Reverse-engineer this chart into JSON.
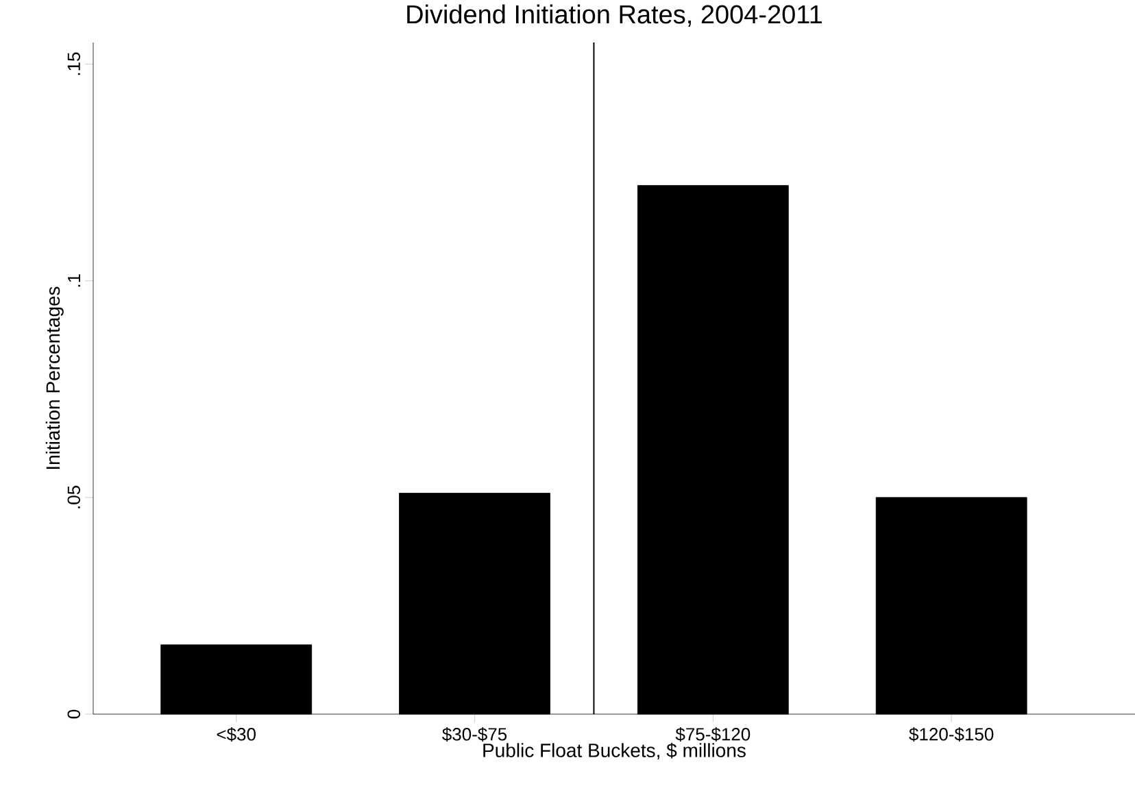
{
  "chart_data": {
    "type": "bar",
    "title": "Dividend Initiation Rates, 2004-2011",
    "xlabel": "Public Float Buckets, $ millions",
    "ylabel": "Initiation Percentages",
    "categories": [
      "<$30",
      "$30-$75",
      "$75-$120",
      "$120-$150"
    ],
    "values": [
      0.016,
      0.051,
      0.122,
      0.05
    ],
    "color": "#000000",
    "ylim": [
      0,
      0.155
    ],
    "yticks": [
      0,
      {
        "value": 0.05,
        "label": ".05"
      },
      {
        "value": 0.1,
        "label": ".1"
      },
      {
        "value": 0.15,
        "label": ".15"
      }
    ],
    "grid": false
  }
}
